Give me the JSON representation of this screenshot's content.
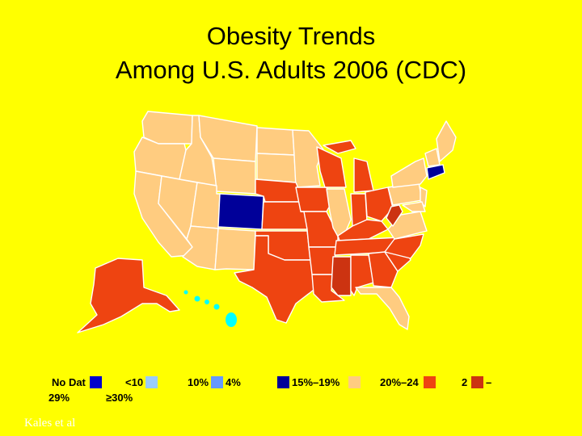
{
  "title": {
    "line1": "Obesity Trends",
    "line2": "Among U.S. Adults 2006 (CDC)"
  },
  "colors": {
    "background": "#ffff00",
    "no_data": "#0000cc",
    "lt10": "#99ccff",
    "10_14": "#6699ff",
    "15_19": "#000099",
    "20_24": "#ffcc80",
    "25_29": "#ee4411",
    "30_plus": "#cc3311",
    "water": "#00ffff"
  },
  "legend": {
    "no_data": "No Dat",
    "lt10": "<10",
    "10_14_left": "10%",
    "10_14_right": "4%",
    "15_19": "15%–19%",
    "20_24": "20%–24",
    "25_29_left": "2",
    "25_29_right": "–",
    "29_pct": "29%",
    "ge30": "≥30%"
  },
  "credit": "Kales et al"
}
